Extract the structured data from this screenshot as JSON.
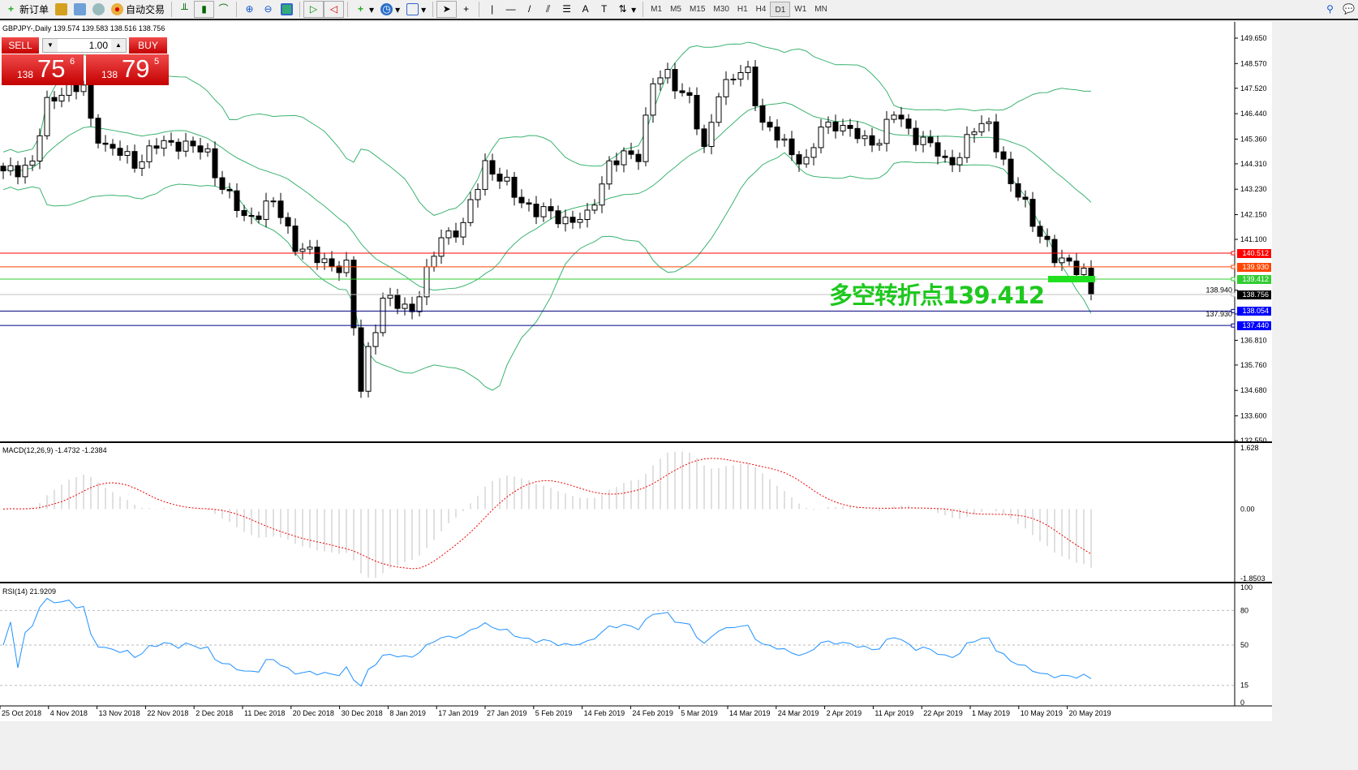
{
  "toolbar": {
    "new_order": "新订单",
    "auto_trading": "自动交易",
    "timeframes": [
      "M1",
      "M5",
      "M15",
      "M30",
      "H1",
      "H4",
      "D1",
      "W1",
      "MN"
    ],
    "active_timeframe": "D1"
  },
  "chart": {
    "header": "GBPJPY-,Daily  139.574 139.583 138.516 138.756",
    "symbol": "GBPJPY-",
    "period": "Daily",
    "ohlc": {
      "open": 139.574,
      "high": 139.583,
      "low": 138.516,
      "close": 138.756
    }
  },
  "trade_panel": {
    "sell_label": "SELL",
    "buy_label": "BUY",
    "lot": "1.00",
    "sell_big": "138",
    "sell_main": "75",
    "sell_sup": "6",
    "buy_big": "138",
    "buy_main": "79",
    "buy_sup": "5"
  },
  "annotation": "多空转折点139.412",
  "price_axis": [
    "149.650",
    "148.570",
    "147.520",
    "146.440",
    "145.360",
    "144.310",
    "143.230",
    "142.150",
    "141.100",
    "138.940",
    "137.930",
    "136.810",
    "135.760",
    "134.680",
    "133.600",
    "132.550"
  ],
  "levels": [
    {
      "price": "140.512",
      "color": "#ff0000"
    },
    {
      "price": "139.930",
      "color": "#ff4500"
    },
    {
      "price": "139.412",
      "color": "#32cd32"
    },
    {
      "price": "138.756",
      "color": "#000000",
      "line": "#c0c0c0"
    },
    {
      "price": "138.054",
      "color": "#0000ff",
      "line": "#000080"
    },
    {
      "price": "137.440",
      "color": "#0000ff",
      "line": "#000080"
    }
  ],
  "macd": {
    "label": "MACD(12,26,9) -1.4732 -1.2384",
    "axis": [
      "1.628",
      "0.00",
      "-1.8503"
    ],
    "range": [
      -1.8503,
      1.628
    ]
  },
  "rsi": {
    "label": "RSI(14) 21.9209",
    "axis": [
      "100",
      "80",
      "50",
      "15",
      "0"
    ]
  },
  "time_axis": [
    "25 Oct 2018",
    "4 Nov 2018",
    "13 Nov 2018",
    "22 Nov 2018",
    "2 Dec 2018",
    "11 Dec 2018",
    "20 Dec 2018",
    "30 Dec 2018",
    "8 Jan 2019",
    "17 Jan 2019",
    "27 Jan 2019",
    "5 Feb 2019",
    "14 Feb 2019",
    "24 Feb 2019",
    "5 Mar 2019",
    "14 Mar 2019",
    "24 Mar 2019",
    "2 Apr 2019",
    "11 Apr 2019",
    "22 Apr 2019",
    "1 May 2019",
    "10 May 2019",
    "20 May 2019"
  ],
  "chart_data": {
    "type": "candlestick",
    "price_range": [
      132.55,
      149.65
    ],
    "close_path": [
      [
        0,
        143.86
      ],
      [
        4,
        144.37
      ],
      [
        6,
        146.79
      ],
      [
        8,
        147.48
      ],
      [
        11,
        147.48
      ],
      [
        12,
        146.1
      ],
      [
        14,
        145.06
      ],
      [
        18,
        144.37
      ],
      [
        21,
        145.06
      ],
      [
        24,
        145.24
      ],
      [
        28,
        144.72
      ],
      [
        30,
        143.34
      ],
      [
        33,
        141.96
      ],
      [
        37,
        142.65
      ],
      [
        40,
        140.93
      ],
      [
        43,
        140.24
      ],
      [
        47,
        139.89
      ],
      [
        49,
        134.72
      ],
      [
        50,
        136.44
      ],
      [
        52,
        138.51
      ],
      [
        56,
        138.17
      ],
      [
        58,
        139.55
      ],
      [
        60,
        141.27
      ],
      [
        63,
        141.62
      ],
      [
        66,
        144.37
      ],
      [
        68,
        143.68
      ],
      [
        70,
        143.0
      ],
      [
        73,
        142.31
      ],
      [
        77,
        141.96
      ],
      [
        80,
        141.96
      ],
      [
        83,
        144.37
      ],
      [
        87,
        144.72
      ],
      [
        89,
        147.82
      ],
      [
        91,
        147.99
      ],
      [
        94,
        147.13
      ],
      [
        96,
        144.72
      ],
      [
        98,
        147.48
      ],
      [
        100,
        147.99
      ],
      [
        102,
        148.17
      ],
      [
        104,
        146.1
      ],
      [
        107,
        145.06
      ],
      [
        110,
        144.37
      ],
      [
        112,
        145.75
      ],
      [
        114,
        146.1
      ],
      [
        118,
        145.24
      ],
      [
        120,
        145.41
      ],
      [
        122,
        146.44
      ],
      [
        124,
        145.75
      ],
      [
        127,
        145.06
      ],
      [
        129,
        144.37
      ],
      [
        131,
        144.72
      ],
      [
        133,
        145.75
      ],
      [
        135,
        146.1
      ],
      [
        138,
        143.34
      ],
      [
        140,
        142.65
      ],
      [
        142,
        141.27
      ],
      [
        144,
        140.24
      ],
      [
        146,
        140.24
      ],
      [
        148,
        139.55
      ],
      [
        149,
        138.756
      ]
    ]
  }
}
